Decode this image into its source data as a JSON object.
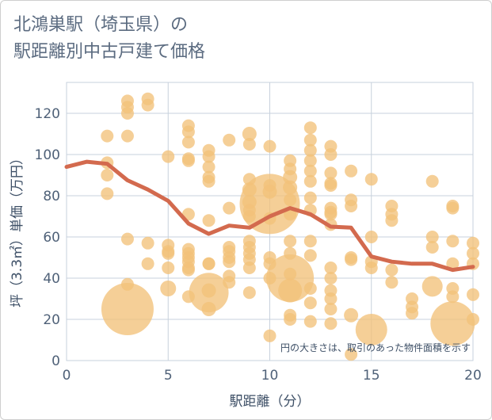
{
  "title": "北鴻巣駅（埼玉県）の\n駅距離別中古戸建て価格",
  "chart_data": {
    "type": "scatter",
    "title": "北鴻巣駅（埼玉県）の駅距離別中古戸建て価格",
    "xlabel": "駅距離（分）",
    "ylabel": "坪（3.3㎡）単価（万円）",
    "xlim": [
      0,
      20
    ],
    "ylim": [
      0,
      135
    ],
    "xticks": [
      0,
      5,
      10,
      15,
      20
    ],
    "yticks": [
      0,
      20,
      40,
      60,
      80,
      100,
      120
    ],
    "grid": true,
    "note": "円の大きさは、取引のあった物件面積を示す",
    "colors": {
      "bubble": "#f2c27a",
      "line": "#d36a4e"
    },
    "points": [
      {
        "x": 2,
        "y": 109,
        "size": 8
      },
      {
        "x": 2,
        "y": 96,
        "size": 8
      },
      {
        "x": 2,
        "y": 90,
        "size": 8
      },
      {
        "x": 2,
        "y": 81,
        "size": 8
      },
      {
        "x": 3,
        "y": 126,
        "size": 8
      },
      {
        "x": 3,
        "y": 123,
        "size": 8
      },
      {
        "x": 3,
        "y": 120,
        "size": 8
      },
      {
        "x": 3,
        "y": 109,
        "size": 8
      },
      {
        "x": 3,
        "y": 59,
        "size": 8
      },
      {
        "x": 3,
        "y": 37,
        "size": 8
      },
      {
        "x": 3,
        "y": 25,
        "size": 33
      },
      {
        "x": 4,
        "y": 127,
        "size": 8
      },
      {
        "x": 4,
        "y": 124,
        "size": 8
      },
      {
        "x": 4,
        "y": 57,
        "size": 8
      },
      {
        "x": 4,
        "y": 47,
        "size": 8
      },
      {
        "x": 5,
        "y": 99,
        "size": 8
      },
      {
        "x": 5,
        "y": 56,
        "size": 8
      },
      {
        "x": 5,
        "y": 53,
        "size": 8
      },
      {
        "x": 5,
        "y": 52,
        "size": 8
      },
      {
        "x": 5,
        "y": 45,
        "size": 8
      },
      {
        "x": 5,
        "y": 35,
        "size": 10
      },
      {
        "x": 6,
        "y": 114,
        "size": 8
      },
      {
        "x": 6,
        "y": 111,
        "size": 8
      },
      {
        "x": 6,
        "y": 106,
        "size": 8
      },
      {
        "x": 6,
        "y": 98,
        "size": 8
      },
      {
        "x": 6,
        "y": 97,
        "size": 8
      },
      {
        "x": 6,
        "y": 71,
        "size": 8
      },
      {
        "x": 6,
        "y": 54,
        "size": 8
      },
      {
        "x": 6,
        "y": 52,
        "size": 8
      },
      {
        "x": 6,
        "y": 50,
        "size": 8
      },
      {
        "x": 6,
        "y": 48,
        "size": 8
      },
      {
        "x": 6,
        "y": 45,
        "size": 8
      },
      {
        "x": 6,
        "y": 44,
        "size": 8
      },
      {
        "x": 6,
        "y": 31,
        "size": 8
      },
      {
        "x": 7,
        "y": 102,
        "size": 8
      },
      {
        "x": 7,
        "y": 99,
        "size": 8
      },
      {
        "x": 7,
        "y": 94,
        "size": 8
      },
      {
        "x": 7,
        "y": 89,
        "size": 8
      },
      {
        "x": 7,
        "y": 87,
        "size": 8
      },
      {
        "x": 7,
        "y": 68,
        "size": 8
      },
      {
        "x": 7,
        "y": 47,
        "size": 8
      },
      {
        "x": 7,
        "y": 47,
        "size": 8
      },
      {
        "x": 7,
        "y": 33,
        "size": 25
      },
      {
        "x": 7,
        "y": 34,
        "size": 9
      },
      {
        "x": 7,
        "y": 25,
        "size": 9
      },
      {
        "x": 8,
        "y": 107,
        "size": 8
      },
      {
        "x": 8,
        "y": 74,
        "size": 8
      },
      {
        "x": 8,
        "y": 55,
        "size": 8
      },
      {
        "x": 8,
        "y": 53,
        "size": 8
      },
      {
        "x": 8,
        "y": 50,
        "size": 8
      },
      {
        "x": 8,
        "y": 48,
        "size": 8
      },
      {
        "x": 8,
        "y": 41,
        "size": 8
      },
      {
        "x": 8,
        "y": 38,
        "size": 8
      },
      {
        "x": 9,
        "y": 110,
        "size": 9
      },
      {
        "x": 9,
        "y": 105,
        "size": 8
      },
      {
        "x": 9,
        "y": 88,
        "size": 8
      },
      {
        "x": 9,
        "y": 83,
        "size": 9
      },
      {
        "x": 9,
        "y": 77,
        "size": 9
      },
      {
        "x": 9,
        "y": 73,
        "size": 8
      },
      {
        "x": 9,
        "y": 70,
        "size": 8
      },
      {
        "x": 9,
        "y": 58,
        "size": 8
      },
      {
        "x": 9,
        "y": 55,
        "size": 8
      },
      {
        "x": 9,
        "y": 52,
        "size": 8
      },
      {
        "x": 9,
        "y": 49,
        "size": 8
      },
      {
        "x": 9,
        "y": 45,
        "size": 8
      },
      {
        "x": 9,
        "y": 33,
        "size": 8
      },
      {
        "x": 10,
        "y": 104,
        "size": 8
      },
      {
        "x": 10,
        "y": 85,
        "size": 8
      },
      {
        "x": 10,
        "y": 82,
        "size": 9
      },
      {
        "x": 10,
        "y": 76,
        "size": 38
      },
      {
        "x": 10,
        "y": 69,
        "size": 8
      },
      {
        "x": 10,
        "y": 50,
        "size": 8
      },
      {
        "x": 10,
        "y": 47,
        "size": 8
      },
      {
        "x": 10,
        "y": 40,
        "size": 8
      },
      {
        "x": 10,
        "y": 12,
        "size": 8
      },
      {
        "x": 11,
        "y": 97,
        "size": 8
      },
      {
        "x": 11,
        "y": 93,
        "size": 8
      },
      {
        "x": 11,
        "y": 89,
        "size": 9
      },
      {
        "x": 11,
        "y": 84,
        "size": 9
      },
      {
        "x": 11,
        "y": 78,
        "size": 8
      },
      {
        "x": 11,
        "y": 71,
        "size": 8
      },
      {
        "x": 11,
        "y": 58,
        "size": 8
      },
      {
        "x": 11,
        "y": 52,
        "size": 8
      },
      {
        "x": 11,
        "y": 42,
        "size": 8
      },
      {
        "x": 11,
        "y": 40,
        "size": 30
      },
      {
        "x": 11,
        "y": 34,
        "size": 15
      },
      {
        "x": 11,
        "y": 22,
        "size": 8
      },
      {
        "x": 11,
        "y": 20,
        "size": 8
      },
      {
        "x": 12,
        "y": 113,
        "size": 8
      },
      {
        "x": 12,
        "y": 107,
        "size": 8
      },
      {
        "x": 12,
        "y": 102,
        "size": 8
      },
      {
        "x": 12,
        "y": 97,
        "size": 8
      },
      {
        "x": 12,
        "y": 92,
        "size": 8
      },
      {
        "x": 12,
        "y": 87,
        "size": 8
      },
      {
        "x": 12,
        "y": 79,
        "size": 8
      },
      {
        "x": 12,
        "y": 73,
        "size": 8
      },
      {
        "x": 12,
        "y": 58,
        "size": 8
      },
      {
        "x": 12,
        "y": 51,
        "size": 8
      },
      {
        "x": 12,
        "y": 35,
        "size": 8
      },
      {
        "x": 12,
        "y": 28,
        "size": 8
      },
      {
        "x": 12,
        "y": 19,
        "size": 8
      },
      {
        "x": 13,
        "y": 104,
        "size": 8
      },
      {
        "x": 13,
        "y": 100,
        "size": 8
      },
      {
        "x": 13,
        "y": 91,
        "size": 8
      },
      {
        "x": 13,
        "y": 86,
        "size": 8
      },
      {
        "x": 13,
        "y": 85,
        "size": 8
      },
      {
        "x": 13,
        "y": 74,
        "size": 8
      },
      {
        "x": 13,
        "y": 72,
        "size": 8
      },
      {
        "x": 13,
        "y": 71,
        "size": 8
      },
      {
        "x": 13,
        "y": 66,
        "size": 8
      },
      {
        "x": 13,
        "y": 45,
        "size": 8
      },
      {
        "x": 13,
        "y": 40,
        "size": 8
      },
      {
        "x": 13,
        "y": 34,
        "size": 8
      },
      {
        "x": 13,
        "y": 30,
        "size": 8
      },
      {
        "x": 13,
        "y": 25,
        "size": 8
      },
      {
        "x": 13,
        "y": 18,
        "size": 8
      },
      {
        "x": 14,
        "y": 92,
        "size": 8
      },
      {
        "x": 14,
        "y": 78,
        "size": 8
      },
      {
        "x": 14,
        "y": 75,
        "size": 8
      },
      {
        "x": 14,
        "y": 50,
        "size": 8
      },
      {
        "x": 14,
        "y": 49,
        "size": 8
      },
      {
        "x": 14,
        "y": 22,
        "size": 9
      },
      {
        "x": 14,
        "y": 3,
        "size": 8
      },
      {
        "x": 15,
        "y": 88,
        "size": 8
      },
      {
        "x": 15,
        "y": 60,
        "size": 8
      },
      {
        "x": 15,
        "y": 48,
        "size": 8
      },
      {
        "x": 15,
        "y": 45,
        "size": 8
      },
      {
        "x": 15,
        "y": 15,
        "size": 20
      },
      {
        "x": 16,
        "y": 75,
        "size": 8
      },
      {
        "x": 16,
        "y": 71,
        "size": 8
      },
      {
        "x": 16,
        "y": 68,
        "size": 8
      },
      {
        "x": 16,
        "y": 44,
        "size": 8
      },
      {
        "x": 16,
        "y": 38,
        "size": 8
      },
      {
        "x": 17,
        "y": 30,
        "size": 8
      },
      {
        "x": 17,
        "y": 26,
        "size": 8
      },
      {
        "x": 17,
        "y": 23,
        "size": 8
      },
      {
        "x": 18,
        "y": 87,
        "size": 8
      },
      {
        "x": 18,
        "y": 60,
        "size": 8
      },
      {
        "x": 18,
        "y": 55,
        "size": 8
      },
      {
        "x": 18,
        "y": 36,
        "size": 13
      },
      {
        "x": 19,
        "y": 75,
        "size": 8
      },
      {
        "x": 19,
        "y": 74,
        "size": 8
      },
      {
        "x": 19,
        "y": 58,
        "size": 8
      },
      {
        "x": 19,
        "y": 47,
        "size": 8
      },
      {
        "x": 19,
        "y": 35,
        "size": 8
      },
      {
        "x": 19,
        "y": 31,
        "size": 8
      },
      {
        "x": 19,
        "y": 18,
        "size": 28
      },
      {
        "x": 20,
        "y": 57,
        "size": 8
      },
      {
        "x": 20,
        "y": 52,
        "size": 8
      },
      {
        "x": 20,
        "y": 47,
        "size": 8
      },
      {
        "x": 20,
        "y": 32,
        "size": 8
      },
      {
        "x": 20,
        "y": 20,
        "size": 8
      }
    ],
    "series": [
      {
        "type": "line",
        "x": [
          0,
          1,
          2,
          3,
          4,
          5,
          6,
          7,
          8,
          9,
          10,
          11,
          12,
          13,
          14,
          15,
          16,
          17,
          18,
          19,
          20
        ],
        "y": [
          94,
          96.5,
          95.5,
          87.5,
          83,
          77.5,
          66.5,
          61.5,
          65.5,
          64.5,
          70,
          74,
          71,
          65,
          64.5,
          50.5,
          48,
          47,
          47,
          44,
          45.5
        ]
      }
    ]
  }
}
